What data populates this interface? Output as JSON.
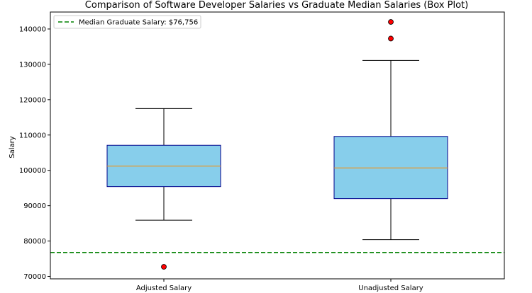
{
  "chart_data": {
    "type": "box",
    "title": "Comparison of Software Developer Salaries vs Graduate Median Salaries (Box Plot)",
    "xlabel": "",
    "ylabel": "Salary",
    "categories": [
      "Adjusted Salary",
      "Unadjusted Salary"
    ],
    "ylim": [
      69300,
      144800
    ],
    "yticks": [
      70000,
      80000,
      90000,
      100000,
      110000,
      120000,
      130000,
      140000
    ],
    "boxes": [
      {
        "category": "Adjusted Salary",
        "whisker_low": 85900,
        "q1": 95400,
        "median": 101200,
        "q3": 107100,
        "whisker_high": 117500,
        "outliers": [
          72700
        ]
      },
      {
        "category": "Unadjusted Salary",
        "whisker_low": 80400,
        "q1": 92000,
        "median": 100700,
        "q3": 109600,
        "whisker_high": 131100,
        "outliers": [
          137300,
          142000
        ]
      }
    ],
    "reference_line": {
      "label": "Median Graduate Salary: $76,756",
      "value": 76756
    },
    "legend": {
      "position": "top-left",
      "entries": [
        "Median Graduate Salary: $76,756"
      ]
    },
    "grid": false,
    "colors": {
      "box_fill": "#87ceeb",
      "box_edge": "#00008b",
      "median_line": "#ff8c00",
      "outlier_fill": "#ff0000",
      "reference_line": "#008000"
    }
  }
}
